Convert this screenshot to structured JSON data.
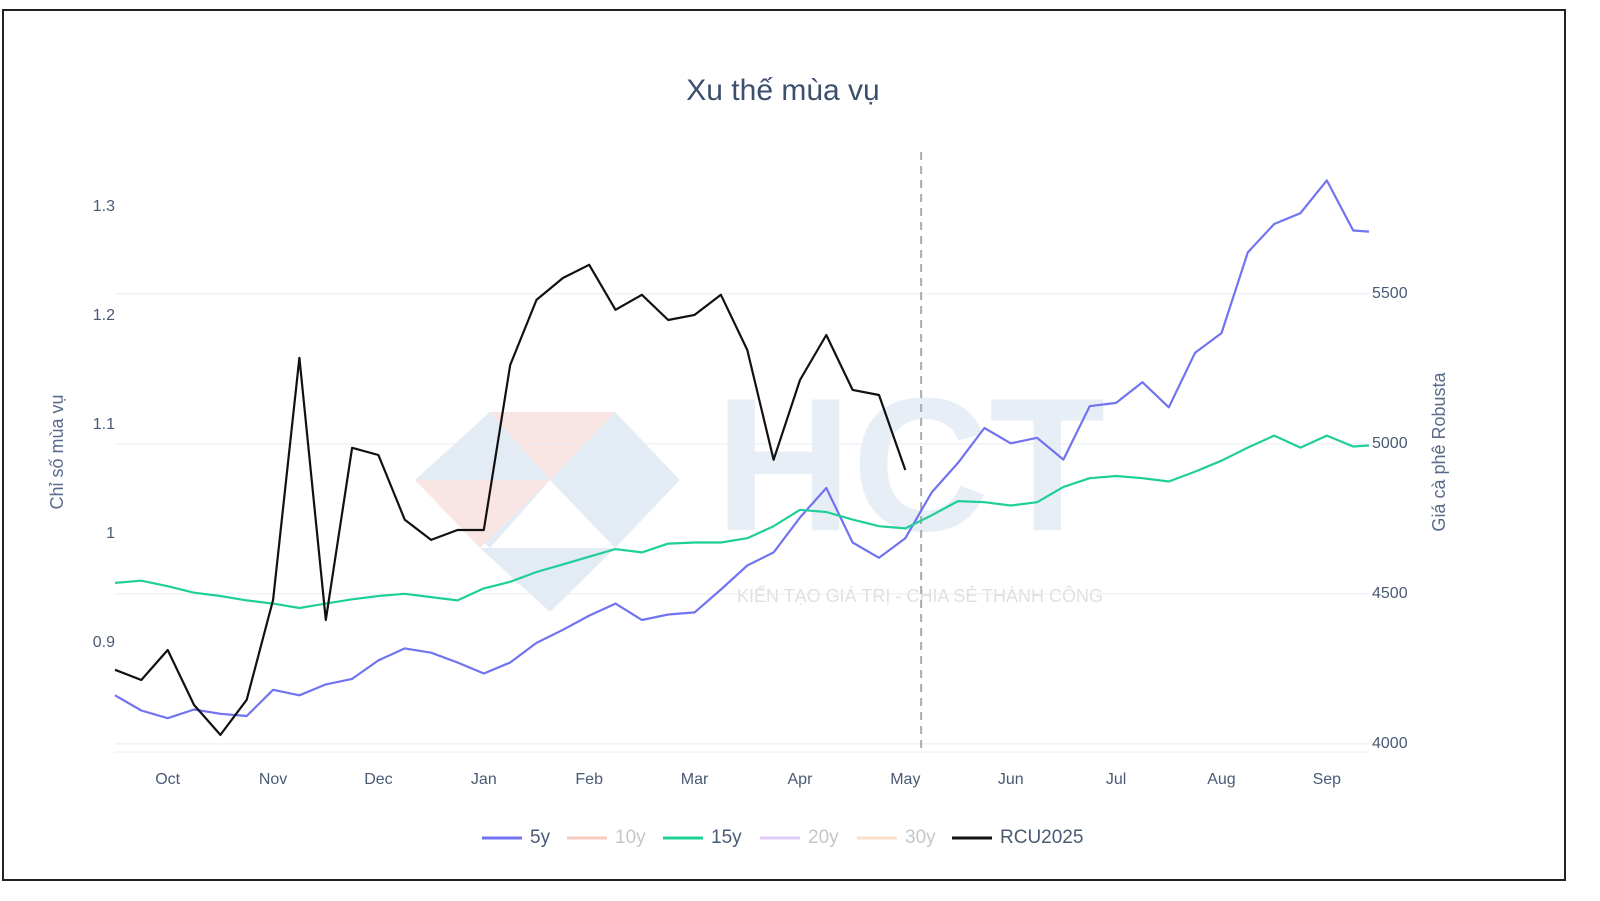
{
  "chart_data": {
    "type": "line",
    "title": "Xu thế mùa vụ",
    "y_label": "Chỉ số mùa vụ",
    "y2_label": "Giá cà phê Robusta",
    "watermark": "HCT",
    "watermark_slogan": "KIẾN TẠO GIÁ TRỊ - CHIA SẺ THÀNH CÔNG",
    "x": [
      0,
      0.25,
      0.5,
      0.75,
      1,
      1.25,
      1.5,
      1.75,
      2,
      2.25,
      2.5,
      2.75,
      3,
      3.25,
      3.5,
      3.75,
      4,
      4.25,
      4.5,
      4.75,
      5,
      5.25,
      5.5,
      5.75,
      6,
      6.25,
      6.5,
      6.75,
      7,
      7.25,
      7.5,
      7.75,
      8,
      8.25,
      8.5,
      8.75,
      9,
      9.25,
      9.5,
      9.75,
      10,
      10.25,
      10.5,
      10.75,
      11,
      11.25,
      11.5,
      11.75,
      11.9
    ],
    "xlim": [
      0,
      11.9
    ],
    "xticks": [
      {
        "value": 0.5,
        "label": "Oct"
      },
      {
        "value": 1.5,
        "label": "Nov"
      },
      {
        "value": 2.5,
        "label": "Dec"
      },
      {
        "value": 3.5,
        "label": "Jan"
      },
      {
        "value": 4.5,
        "label": "Feb"
      },
      {
        "value": 5.5,
        "label": "Mar"
      },
      {
        "value": 6.5,
        "label": "Apr"
      },
      {
        "value": 7.5,
        "label": "May"
      },
      {
        "value": 8.5,
        "label": "Jun"
      },
      {
        "value": 9.5,
        "label": "Jul"
      },
      {
        "value": 10.5,
        "label": "Aug"
      },
      {
        "value": 11.5,
        "label": "Sep"
      }
    ],
    "ylim": [
      0.8,
      1.35
    ],
    "yticks": [
      0.9,
      1,
      1.1,
      1.2,
      1.3
    ],
    "y2lim": [
      3973,
      5973
    ],
    "y2ticks": [
      4000,
      4500,
      5000,
      5500
    ],
    "grid": true,
    "vline": 7.65,
    "legend": "bottom",
    "series": [
      {
        "name": "5y",
        "color": "#7173f0",
        "values": [
          0.852,
          0.838,
          0.831,
          0.839,
          0.835,
          0.833,
          0.857,
          0.852,
          0.862,
          0.867,
          0.884,
          0.895,
          0.891,
          0.882,
          0.872,
          0.882,
          0.9,
          0.912,
          0.925,
          0.936,
          0.921,
          0.926,
          0.928,
          0.949,
          0.971,
          0.983,
          1.015,
          1.042,
          0.992,
          0.978,
          0.996,
          1.038,
          1.065,
          1.097,
          1.083,
          1.088,
          1.068,
          1.117,
          1.12,
          1.139,
          1.116,
          1.166,
          1.184,
          1.258,
          1.284,
          1.294,
          1.324,
          1.278,
          1.277
        ]
      },
      {
        "name": "10y",
        "color": "#f4a08a",
        "visible": "legendonly"
      },
      {
        "name": "15y",
        "color": "#1fcf98",
        "values": [
          0.955,
          0.957,
          0.952,
          0.946,
          0.943,
          0.939,
          0.936,
          0.932,
          0.936,
          0.94,
          0.943,
          0.945,
          0.942,
          0.939,
          0.95,
          0.956,
          0.965,
          0.972,
          0.979,
          0.986,
          0.983,
          0.991,
          0.992,
          0.992,
          0.996,
          1.007,
          1.022,
          1.02,
          1.013,
          1.007,
          1.005,
          1.017,
          1.03,
          1.029,
          1.026,
          1.029,
          1.043,
          1.051,
          1.053,
          1.051,
          1.048,
          1.057,
          1.067,
          1.079,
          1.09,
          1.079,
          1.09,
          1.08,
          1.081
        ]
      },
      {
        "name": "20y",
        "color": "#c9a4f5",
        "visible": "legendonly"
      },
      {
        "name": "30y",
        "color": "#fcc59c",
        "visible": "legendonly"
      },
      {
        "name": "RCU2025",
        "color": "#111111",
        "axis": "y2",
        "values": [
          4247,
          4213,
          4313,
          4130,
          4030,
          4147,
          4480,
          5287,
          4413,
          4987,
          4963,
          4747,
          4680,
          4713,
          4713,
          5263,
          5480,
          5553,
          5597,
          5447,
          5497,
          5413,
          5430,
          5497,
          5313,
          4947,
          5213,
          5363,
          5180,
          5163,
          4913,
          null,
          null,
          null,
          null,
          null,
          null,
          null,
          null,
          null,
          null,
          null,
          null,
          null,
          null,
          null,
          null,
          null,
          null
        ]
      }
    ]
  }
}
